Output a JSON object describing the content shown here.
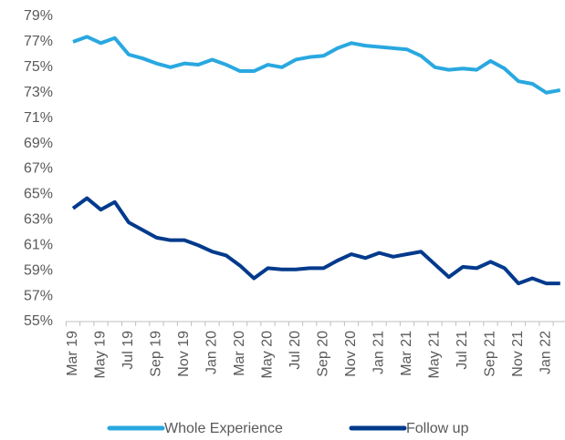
{
  "chart_data": {
    "type": "line",
    "categories": [
      "Mar 19",
      null,
      "May 19",
      null,
      "Jul 19",
      null,
      "Sep 19",
      null,
      "Nov 19",
      null,
      "Jan 20",
      null,
      "Mar 20",
      null,
      "May 20",
      null,
      "Jul 20",
      null,
      "Sep 20",
      null,
      "Nov 20",
      null,
      "Jan 21",
      null,
      "Mar 21",
      null,
      "May 21",
      null,
      "Jul 21",
      null,
      "Sep 21",
      null,
      "Nov 21",
      null,
      "Jan 22",
      null
    ],
    "series": [
      {
        "name": "Whole Experience",
        "color": "#29a8e0",
        "values": [
          77.0,
          77.4,
          76.9,
          77.3,
          76.0,
          75.7,
          75.3,
          75.0,
          75.3,
          75.2,
          75.6,
          75.2,
          74.7,
          74.7,
          75.2,
          75.0,
          75.6,
          75.8,
          75.9,
          76.5,
          76.9,
          76.7,
          76.6,
          76.5,
          76.4,
          75.9,
          75.0,
          74.8,
          74.9,
          74.8,
          75.5,
          74.9,
          73.9,
          73.7,
          73.0,
          73.2
        ]
      },
      {
        "name": "Follow up",
        "color": "#003a8c",
        "values": [
          63.9,
          64.7,
          63.8,
          64.4,
          62.8,
          62.2,
          61.6,
          61.4,
          61.4,
          61.0,
          60.5,
          60.2,
          59.4,
          58.4,
          59.2,
          59.1,
          59.1,
          59.2,
          59.2,
          59.8,
          60.3,
          60.0,
          60.4,
          60.1,
          60.3,
          60.5,
          59.5,
          58.5,
          59.3,
          59.2,
          59.7,
          59.2,
          58.0,
          58.4,
          58.0,
          58.0
        ]
      }
    ],
    "ylim": [
      55,
      79
    ],
    "yticks": [
      {
        "value": 55,
        "label": "55%"
      },
      {
        "value": 57,
        "label": "57%"
      },
      {
        "value": 59,
        "label": "59%"
      },
      {
        "value": 61,
        "label": "61%"
      },
      {
        "value": 63,
        "label": "63%"
      },
      {
        "value": 65,
        "label": "65%"
      },
      {
        "value": 67,
        "label": "67%"
      },
      {
        "value": 69,
        "label": "69%"
      },
      {
        "value": 71,
        "label": "71%"
      },
      {
        "value": 73,
        "label": "73%"
      },
      {
        "value": 75,
        "label": "75%"
      },
      {
        "value": 77,
        "label": "77%"
      },
      {
        "value": 79,
        "label": "79%"
      }
    ],
    "grid": false,
    "legend": "bottom"
  }
}
